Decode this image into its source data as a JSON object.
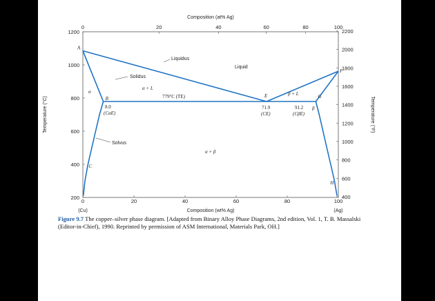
{
  "chart_data": {
    "type": "line",
    "title": "",
    "top_axis_title": "Composition (at% Ag)",
    "top_ticks": [
      "0",
      "20",
      "40",
      "60",
      "80",
      "100"
    ],
    "bottom_axis_title": "Composition (wt% Ag)",
    "bottom_ticks": [
      "0",
      "20",
      "40",
      "60",
      "80",
      "100"
    ],
    "bottom_end_labels": [
      "(Cu)",
      "(Ag)"
    ],
    "left_axis_title": "Temperature (°C)",
    "left_ticks": [
      "200",
      "400",
      "600",
      "800",
      "1000",
      "1200"
    ],
    "right_axis_title": "Temperature (°F)",
    "right_ticks": [
      "400",
      "600",
      "800",
      "1000",
      "1200",
      "1400",
      "1600",
      "1800",
      "2000",
      "2200"
    ],
    "xlim": [
      0,
      100
    ],
    "ylim": [
      200,
      1200
    ],
    "series": [
      {
        "label_ref": "liquidus-left",
        "x": [
          0,
          71.9
        ],
        "y": [
          1085,
          779
        ]
      },
      {
        "label_ref": "liquidus-right",
        "x": [
          71.9,
          100
        ],
        "y": [
          779,
          962
        ]
      },
      {
        "label_ref": "solidus-left",
        "x": [
          0,
          8.0
        ],
        "y": [
          1085,
          779
        ]
      },
      {
        "label_ref": "solidus-right",
        "x": [
          91.2,
          100
        ],
        "y": [
          779,
          962
        ]
      },
      {
        "label_ref": "eutectic-isotherm",
        "x": [
          8.0,
          91.2
        ],
        "y": [
          779,
          779
        ]
      },
      {
        "label_ref": "solvus-left",
        "x": [
          8.0,
          6.5,
          5.0,
          3.5,
          2.0,
          0.8,
          0.2
        ],
        "y": [
          779,
          700,
          600,
          500,
          400,
          300,
          210
        ]
      },
      {
        "label_ref": "solvus-right",
        "x": [
          91.2,
          92.5,
          94.0,
          95.5,
          97.0,
          98.5,
          99.5
        ],
        "y": [
          779,
          700,
          600,
          500,
          400,
          300,
          210
        ]
      }
    ],
    "point_labels": [
      {
        "text": "A",
        "x": 0,
        "y": 1085
      },
      {
        "text": "B",
        "x": 8.0,
        "y": 779
      },
      {
        "text": "C",
        "x": 1.5,
        "y": 380
      },
      {
        "text": "E",
        "x": 71.9,
        "y": 779
      },
      {
        "text": "G",
        "x": 91.2,
        "y": 779
      },
      {
        "text": "F",
        "x": 100,
        "y": 962
      },
      {
        "text": "H",
        "x": 99.0,
        "y": 280
      }
    ],
    "annotations": {
      "liquidus": "Liquidus",
      "solidus": "Solidus",
      "liquid": "Liquid",
      "alpha": "α",
      "beta": "β",
      "alpha_l": "α + L",
      "beta_l": "β + L",
      "alpha_beta": "α + β",
      "solvus": "Solvus",
      "eutectic_temp": "779°C (TE)",
      "b_comp": "8.0",
      "b_comp_sym": "(CαE)",
      "e_comp": "71.9",
      "e_comp_sym": "(CE)",
      "g_comp": "91.2",
      "g_comp_sym": "(CβE)"
    },
    "line_color": "#1f73c4",
    "grid": false
  },
  "caption": {
    "figure_label": "Figure 9.7",
    "text": "The copper–silver phase diagram. [Adapted from Binary Alloy Phase Diagrams, 2nd edition, Vol. 1, T. B. Massalski (Editor-in-Chief), 1990. Reprinted by permission of ASM International, Materials Park, OH.]"
  }
}
